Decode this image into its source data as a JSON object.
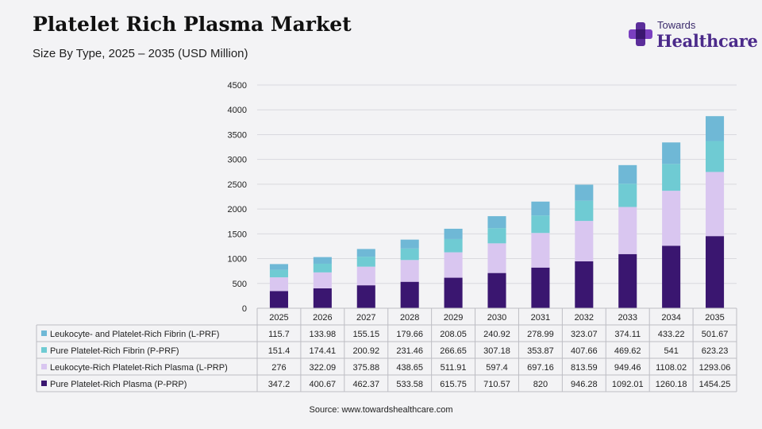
{
  "header": {
    "title": "Platelet Rich Plasma Market",
    "subtitle": "Size By Type, 2025 – 2035 (USD Million)"
  },
  "logo": {
    "top": "Towards",
    "main": "Healthcare"
  },
  "source": "Source: www.towardshealthcare.com",
  "chart_data": {
    "type": "bar",
    "stacked": true,
    "categories": [
      "2025",
      "2026",
      "2027",
      "2028",
      "2029",
      "2030",
      "2031",
      "2032",
      "2033",
      "2034",
      "2035"
    ],
    "ylim": [
      0,
      4500
    ],
    "yticks": [
      0,
      500,
      1000,
      1500,
      2000,
      2500,
      3000,
      3500,
      4000,
      4500
    ],
    "grid": true,
    "legend": "data table below chart",
    "series": [
      {
        "name": "Pure Platelet-Rich Plasma (P-PRP)",
        "color": "#3a1670",
        "values": [
          347.2,
          400.67,
          462.37,
          533.58,
          615.75,
          710.57,
          820,
          946.28,
          1092.01,
          1260.18,
          1454.25
        ],
        "labels": [
          "347.2",
          "400.67",
          "462.37",
          "533.58",
          "615.75",
          "710.57",
          "820",
          "946.28",
          "1092.01",
          "1260.18",
          "1454.25"
        ]
      },
      {
        "name": "Leukocyte-Rich Platelet-Rich Plasma (L-PRP)",
        "color": "#d9c6f0",
        "values": [
          276,
          322.09,
          375.88,
          438.65,
          511.91,
          597.4,
          697.16,
          813.59,
          949.46,
          1108.02,
          1293.06
        ],
        "labels": [
          "276",
          "322.09",
          "375.88",
          "438.65",
          "511.91",
          "597.4",
          "697.16",
          "813.59",
          "949.46",
          "1108.02",
          "1293.06"
        ]
      },
      {
        "name": "Pure Platelet-Rich Fibrin (P-PRF)",
        "color": "#6fcbd3",
        "values": [
          151.4,
          174.41,
          200.92,
          231.46,
          266.65,
          307.18,
          353.87,
          407.66,
          469.62,
          541,
          623.23
        ],
        "labels": [
          "151.4",
          "174.41",
          "200.92",
          "231.46",
          "266.65",
          "307.18",
          "353.87",
          "407.66",
          "469.62",
          "541",
          "623.23"
        ]
      },
      {
        "name": "Leukocyte- and Platelet-Rich Fibrin (L-PRF)",
        "color": "#6fb8d6",
        "values": [
          115.7,
          133.98,
          155.15,
          179.66,
          208.05,
          240.92,
          278.99,
          323.07,
          374.11,
          433.22,
          501.67
        ],
        "labels": [
          "115.7",
          "133.98",
          "155.15",
          "179.66",
          "208.05",
          "240.92",
          "278.99",
          "323.07",
          "374.11",
          "433.22",
          "501.67"
        ]
      }
    ],
    "table_row_order": [
      3,
      2,
      1,
      0
    ]
  }
}
